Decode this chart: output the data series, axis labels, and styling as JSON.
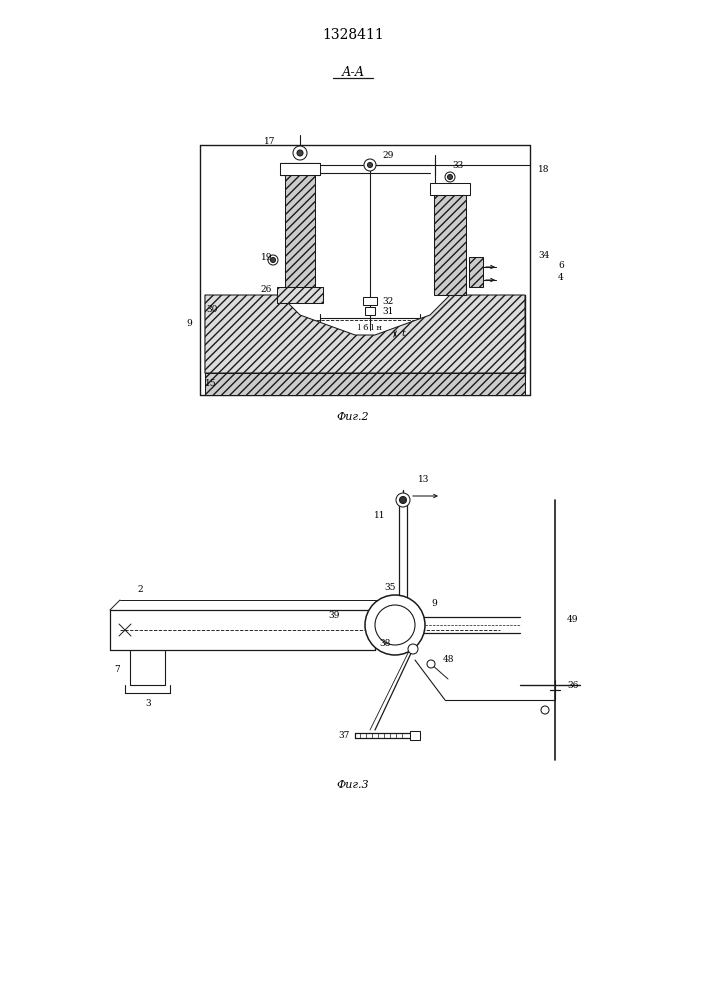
{
  "patent_number": "1328411",
  "fig1_label": "Фиг.2",
  "fig3_label": "Фиг.3",
  "section_label": "А-А",
  "background_color": "#ffffff",
  "line_color": "#1a1a1a",
  "page_width": 7.07,
  "page_height": 10.0,
  "dpi": 100
}
